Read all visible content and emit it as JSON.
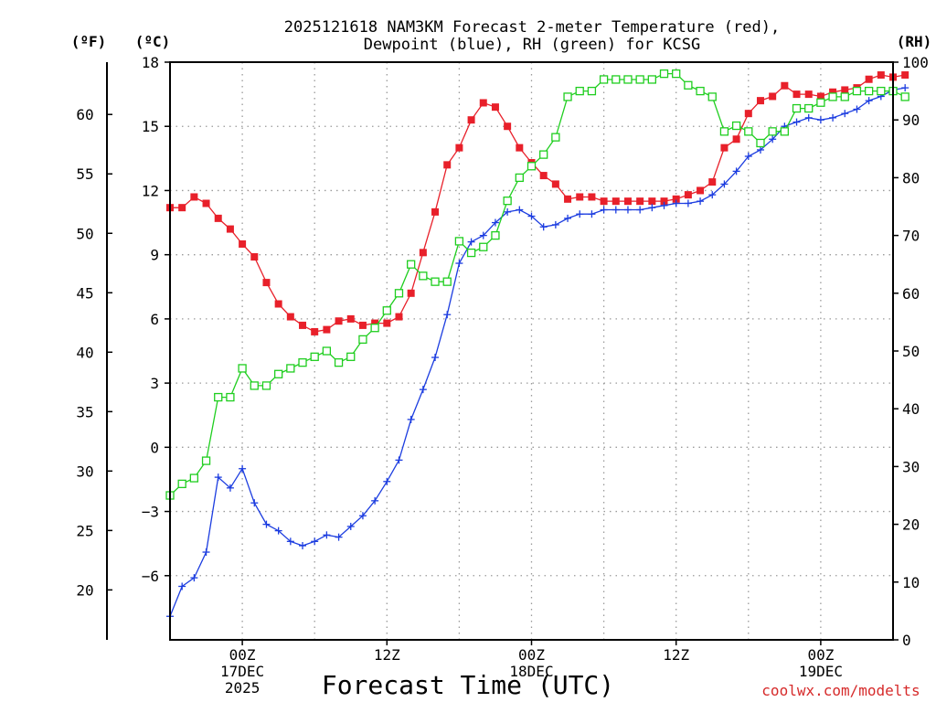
{
  "title_line1": "2025121618 NAM3KM Forecast 2-meter Temperature (red),",
  "title_line2": "Dewpoint (blue), RH (green) for KCSG",
  "x_axis_title": "Forecast Time (UTC)",
  "credit": "coolwx.com/modelts",
  "unit_f": "(ºF)",
  "unit_c": "(ºC)",
  "unit_rh": "(RH)",
  "colors": {
    "temperature": "#e8202a",
    "dewpoint": "#1c3de0",
    "rh": "#1fce1f"
  },
  "chart_data": {
    "type": "line",
    "title": "2025121618 NAM3KM Forecast 2-meter Temperature (red), Dewpoint (blue), RH (green) for KCSG",
    "xlabel": "Forecast Time (UTC)",
    "x_start_hour": -6,
    "x_step_hours": 1,
    "xlim_hours": [
      -6,
      54
    ],
    "x_ticks": [
      {
        "hour": 0,
        "lines": [
          "00Z",
          "17DEC",
          "2025"
        ]
      },
      {
        "hour": 12,
        "lines": [
          "12Z"
        ]
      },
      {
        "hour": 24,
        "lines": [
          "00Z",
          "18DEC"
        ]
      },
      {
        "hour": 36,
        "lines": [
          "12Z"
        ]
      },
      {
        "hour": 48,
        "lines": [
          "00Z",
          "19DEC"
        ]
      }
    ],
    "y_left_c": {
      "label": "ºC",
      "range": [
        -9,
        18
      ],
      "ticks": [
        18,
        15,
        12,
        9,
        6,
        3,
        0,
        -3,
        -6
      ]
    },
    "y_left_f": {
      "label": "ºF",
      "range": [
        15.8,
        64.4
      ],
      "ticks": [
        60,
        55,
        50,
        45,
        40,
        35,
        30,
        25,
        20
      ]
    },
    "y_right_rh": {
      "label": "RH",
      "range": [
        0,
        100
      ],
      "ticks": [
        100,
        90,
        80,
        70,
        60,
        50,
        40,
        30,
        20,
        10,
        0
      ]
    },
    "series": [
      {
        "name": "Temperature (red)",
        "axis": "c",
        "marker": "filled-square",
        "values": [
          11.2,
          11.2,
          11.7,
          11.4,
          10.7,
          10.2,
          9.5,
          8.9,
          7.7,
          6.7,
          6.1,
          5.7,
          5.4,
          5.5,
          5.9,
          6.0,
          5.7,
          5.8,
          5.8,
          6.1,
          7.2,
          9.1,
          11.0,
          13.2,
          14.0,
          15.3,
          16.1,
          15.9,
          15.0,
          14.0,
          13.3,
          12.7,
          12.3,
          11.6,
          11.7,
          11.7,
          11.5,
          11.5,
          11.5,
          11.5,
          11.5,
          11.5,
          11.6,
          11.8,
          12.0,
          12.4,
          14.0,
          14.4,
          15.6,
          16.2,
          16.4,
          16.9,
          16.5,
          16.5,
          16.4,
          16.6,
          16.7,
          16.8,
          17.2,
          17.4,
          17.3,
          17.4
        ]
      },
      {
        "name": "Dewpoint (blue)",
        "axis": "c",
        "marker": "plus",
        "values": [
          -7.9,
          -6.5,
          -6.1,
          -4.9,
          -1.4,
          -1.9,
          -1.0,
          -2.6,
          -3.6,
          -3.9,
          -4.4,
          -4.6,
          -4.4,
          -4.1,
          -4.2,
          -3.7,
          -3.2,
          -2.5,
          -1.6,
          -0.6,
          1.3,
          2.7,
          4.2,
          6.2,
          8.6,
          9.6,
          9.9,
          10.5,
          11.0,
          11.1,
          10.8,
          10.3,
          10.4,
          10.7,
          10.9,
          10.9,
          11.1,
          11.1,
          11.1,
          11.1,
          11.2,
          11.3,
          11.4,
          11.4,
          11.5,
          11.8,
          12.3,
          12.9,
          13.6,
          13.9,
          14.4,
          15.0,
          15.2,
          15.4,
          15.3,
          15.4,
          15.6,
          15.8,
          16.2,
          16.4,
          16.7,
          16.8
        ]
      },
      {
        "name": "RH (green)",
        "axis": "rh",
        "marker": "open-square",
        "values": [
          25,
          27,
          28,
          31,
          42,
          42,
          47,
          44,
          44,
          46,
          47,
          48,
          49,
          50,
          48,
          49,
          52,
          54,
          57,
          60,
          65,
          63,
          62,
          62,
          69,
          67,
          68,
          70,
          76,
          80,
          82,
          84,
          87,
          94,
          95,
          95,
          97,
          97,
          97,
          97,
          97,
          98,
          98,
          96,
          95,
          94,
          88,
          89,
          88,
          86,
          88,
          88,
          92,
          92,
          93,
          94,
          94,
          95,
          95,
          95,
          95,
          94
        ]
      }
    ]
  }
}
